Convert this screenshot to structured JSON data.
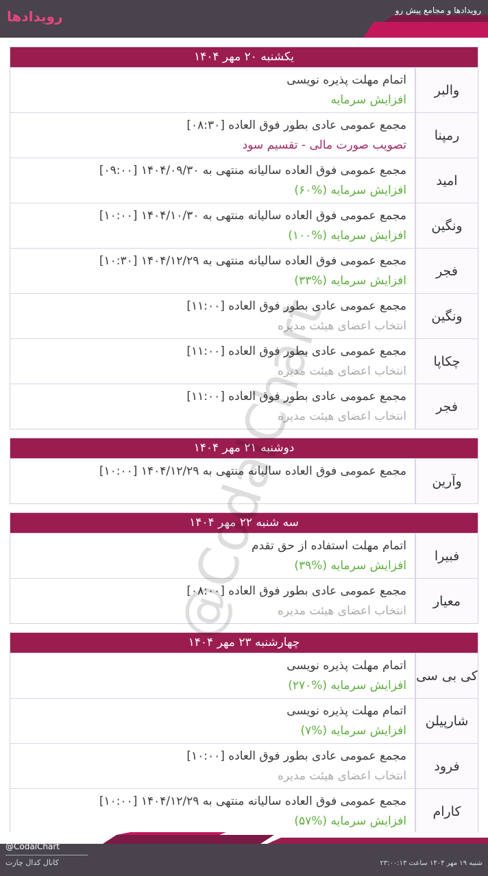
{
  "header": {
    "title": "رویدادها",
    "subtitle": "رویدادها و مجامع پیش رو"
  },
  "watermark": "@CodalChart",
  "days": [
    {
      "title": "یکشنبه ۲۰ مهر ۱۴۰۴",
      "events": [
        {
          "symbol": "والبر",
          "line1": "اتمام مهلت پذیره نویسی",
          "line2": "افزایش سرمایه",
          "color": "#5fae3e"
        },
        {
          "symbol": "رمپنا",
          "line1": "مجمع عمومی عادی بطور فوق العاده [۰۸:۳۰]",
          "line2": "تصویب صورت مالی - تقسیم سود",
          "color": "#a02a68"
        },
        {
          "symbol": "امید",
          "line1": "مجمع عمومی فوق العاده سالیانه منتهی به  ۱۴۰۴/۰۹/۳۰ [۰۹:۰۰]",
          "line2": "افزایش سرمایه (%۶۰)",
          "color": "#5fae3e"
        },
        {
          "symbol": "ونگین",
          "line1": "مجمع عمومی فوق العاده سالیانه منتهی به  ۱۴۰۴/۱۰/۳۰ [۱۰:۰۰]",
          "line2": "افزایش سرمایه (%۱۰۰)",
          "color": "#5fae3e"
        },
        {
          "symbol": "فجر",
          "line1": "مجمع عمومی فوق العاده سالیانه منتهی به  ۱۴۰۴/۱۲/۲۹ [۱۰:۳۰]",
          "line2": "افزایش سرمایه (%۳۳)",
          "color": "#5fae3e"
        },
        {
          "symbol": "ونگین",
          "line1": "مجمع عمومی عادی بطور فوق العاده [۱۱:۰۰]",
          "line2": "انتخاب اعضای هیئت مدیره",
          "color": "#aaaaaa"
        },
        {
          "symbol": "چکاپا",
          "line1": "مجمع عمومی عادی بطور فوق العاده [۱۱:۰۰]",
          "line2": "انتخاب اعضای هیئت مدیره",
          "color": "#aaaaaa"
        },
        {
          "symbol": "فجر",
          "line1": "مجمع عمومی عادی بطور فوق العاده [۱۱:۰۰]",
          "line2": "انتخاب اعضای هیئت مدیره",
          "color": "#aaaaaa"
        }
      ]
    },
    {
      "title": "دوشنبه ۲۱ مهر ۱۴۰۴",
      "events": [
        {
          "symbol": "وآرین",
          "line1": "مجمع عمومی فوق العاده سالیانه منتهی به  ۱۴۰۴/۱۲/۲۹ [۱۰:۰۰]"
        }
      ]
    },
    {
      "title": "سه شنبه ۲۲ مهر ۱۴۰۴",
      "events": [
        {
          "symbol": "فبیرا",
          "line1": "اتمام مهلت استفاده از حق تقدم",
          "line2": "افزایش سرمایه (%۳۹)",
          "color": "#5fae3e"
        },
        {
          "symbol": "معیار",
          "line1": "مجمع عمومی عادی بطور فوق العاده [۰۸:۰۰]",
          "line2": "انتخاب اعضای هیئت مدیره",
          "color": "#aaaaaa"
        }
      ]
    },
    {
      "title": "چهارشنبه ۲۳ مهر ۱۴۰۴",
      "events": [
        {
          "symbol": "کی بی سی",
          "line1": "اتمام مهلت پذیره نویسی",
          "line2": "افزایش سرمایه (%۲۷۰)",
          "color": "#5fae3e"
        },
        {
          "symbol": "شارپیلن",
          "line1": "اتمام مهلت پذیره نویسی",
          "line2": "افزایش سرمایه (%۷)",
          "color": "#5fae3e"
        },
        {
          "symbol": "فرود",
          "line1": "مجمع عمومی عادی بطور فوق العاده [۱۰:۰۰]",
          "line2": "انتخاب اعضای هیئت مدیره",
          "color": "#aaaaaa"
        },
        {
          "symbol": "کارام",
          "line1": "مجمع عمومی فوق العاده سالیانه منتهی به  ۱۴۰۴/۱۲/۲۹ [۱۰:۰۰]",
          "line2": "افزایش سرمایه (%۵۷)",
          "color": "#5fae3e"
        }
      ]
    }
  ],
  "footer": {
    "brand": "@CodalChart",
    "channel": "کانال کدال چارت",
    "timestamp": "شنبه ۱۹ مهر ۱۴۰۴ ساعت ۲۳:۰۰:۱۳"
  }
}
